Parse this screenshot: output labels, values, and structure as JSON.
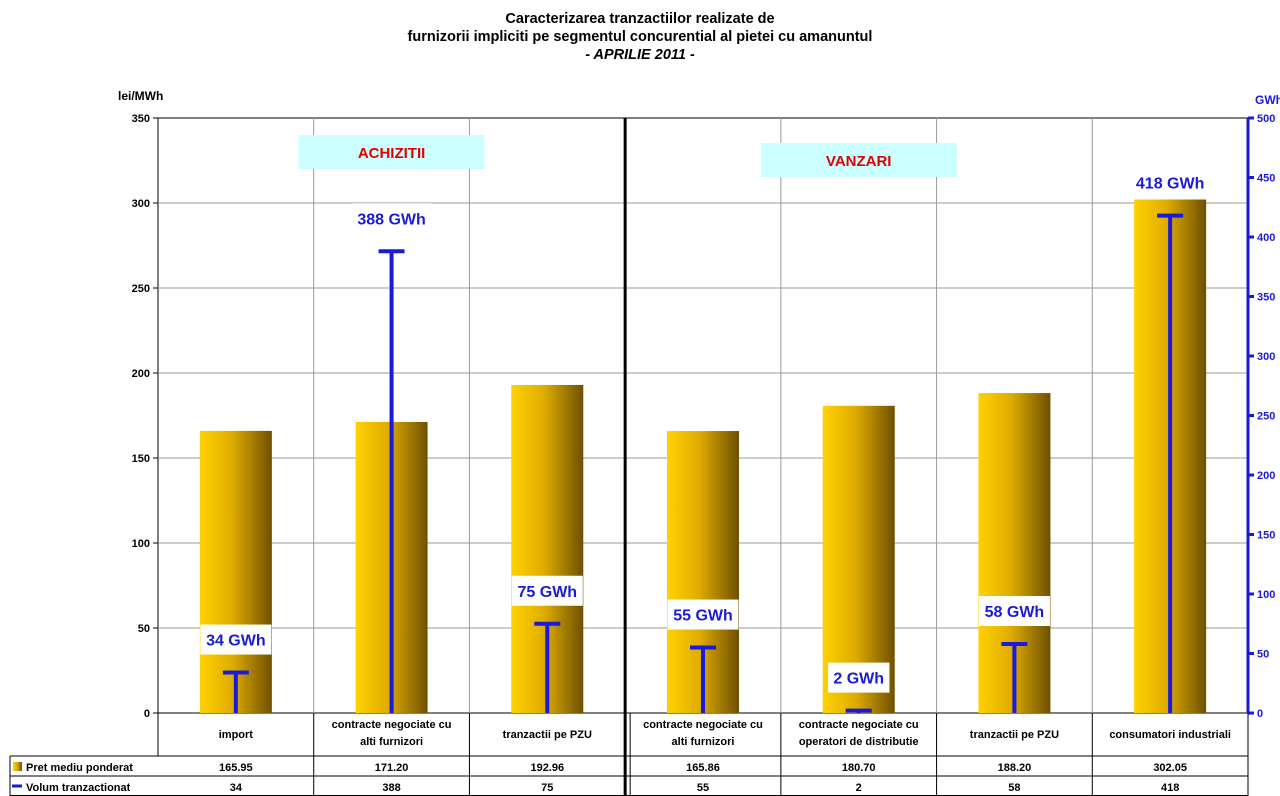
{
  "chart_data": {
    "type": "bar",
    "title": "Caracterizarea tranzactiilor realizate de",
    "subtitle": "furnizorii impliciti pe segmentul concurential al pietei cu amanuntul",
    "period": "- APRILIE 2011 -",
    "y_left_unit": "lei/MWh",
    "y_right_unit": "GWh",
    "ylim_left": [
      0,
      350
    ],
    "ylim_right": [
      0,
      500
    ],
    "y_left_ticks": [
      0,
      50,
      100,
      150,
      200,
      250,
      300,
      350
    ],
    "y_right_ticks": [
      0,
      50,
      100,
      150,
      200,
      250,
      300,
      350,
      400,
      450,
      500
    ],
    "categories": [
      [
        "import"
      ],
      [
        "contracte negociate cu",
        "alti furnizori"
      ],
      [
        "tranzactii pe PZU"
      ],
      [
        "contracte negociate cu",
        "alti furnizori"
      ],
      [
        "contracte negociate cu",
        "operatori de distributie"
      ],
      [
        "tranzactii pe PZU"
      ],
      [
        "consumatori industriali"
      ]
    ],
    "regions": [
      "ACHIZITII",
      "VANZARI"
    ],
    "series": [
      {
        "name": "Pret mediu ponderat",
        "axis": "left",
        "kind": "bar",
        "values": [
          165.95,
          171.2,
          192.96,
          165.86,
          180.7,
          188.2,
          302.05
        ],
        "display": [
          "165.95",
          "171.20",
          "192.96",
          "165.86",
          "180.70",
          "188.20",
          "302.05"
        ],
        "color": "#e8b400"
      },
      {
        "name": "Volum tranzactionat",
        "axis": "right",
        "kind": "volume",
        "values": [
          34,
          388,
          75,
          55,
          2,
          58,
          418
        ],
        "display": [
          "34",
          "388",
          "75",
          "55",
          "2",
          "58",
          "418"
        ],
        "labels": [
          "34 GWh",
          "388 GWh",
          "75 GWh",
          "55 GWh",
          "2 GWh",
          "58 GWh",
          "418 GWh"
        ],
        "color": "#1a1adc"
      }
    ],
    "grid": true,
    "legend": "table-below"
  }
}
